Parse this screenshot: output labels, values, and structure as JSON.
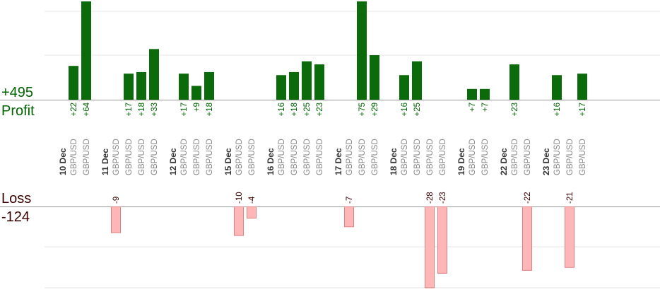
{
  "summary": {
    "profit_total": "+495",
    "profit_label": "Profit",
    "loss_label": "Loss",
    "loss_total": "-124"
  },
  "colors": {
    "profit_bar": "#0b6b0b",
    "profit_text": "#006400",
    "loss_bar": "#ffb6b6",
    "loss_bar_stroke": "#e08080",
    "loss_text": "#3a0000",
    "date_text": "#333333",
    "pair_text": "#888888",
    "grid": "#e6e6e6",
    "axis": "#999999"
  },
  "chart_data": {
    "type": "bar",
    "profit_ylim": [
      0,
      64
    ],
    "loss_ylim": [
      -28,
      0
    ],
    "groups": [
      {
        "date": "10 Dec",
        "trades": [
          {
            "pair": "GBP/USD",
            "value": 22,
            "label": "+22"
          },
          {
            "pair": "GBP/USD",
            "value": 64,
            "label": "+64"
          }
        ]
      },
      {
        "date": "11 Dec",
        "trades": [
          {
            "pair": "GBP/USD",
            "value": -9,
            "label": "-9"
          },
          {
            "pair": "GBP/USD",
            "value": 17,
            "label": "+17"
          },
          {
            "pair": "GBP/USD",
            "value": 18,
            "label": "+18"
          },
          {
            "pair": "GBP/USD",
            "value": 33,
            "label": "+33"
          }
        ]
      },
      {
        "date": "12 Dec",
        "trades": [
          {
            "pair": "GBP/USD",
            "value": 17,
            "label": "+17"
          },
          {
            "pair": "GBP/USD",
            "value": 9,
            "label": "+9"
          },
          {
            "pair": "GBP/USD",
            "value": 18,
            "label": "+18"
          }
        ]
      },
      {
        "date": "15 Dec",
        "trades": [
          {
            "pair": "GBP/USD",
            "value": -10,
            "label": "-10"
          },
          {
            "pair": "GBP/USD",
            "value": -4,
            "label": "-4"
          }
        ]
      },
      {
        "date": "16 Dec",
        "trades": [
          {
            "pair": "GBP/USD",
            "value": 16,
            "label": "+16"
          },
          {
            "pair": "GBP/USD",
            "value": 18,
            "label": "+18"
          },
          {
            "pair": "GBP/USD",
            "value": 25,
            "label": "+25"
          },
          {
            "pair": "GBP/USD",
            "value": 23,
            "label": "+23"
          }
        ]
      },
      {
        "date": "17 Dec",
        "trades": [
          {
            "pair": "GBP/USD",
            "value": -7,
            "label": "-7"
          },
          {
            "pair": "GBP/USD",
            "value": 75,
            "label": "+75"
          },
          {
            "pair": "GBP/USD",
            "value": 29,
            "label": "+29"
          }
        ]
      },
      {
        "date": "18 Dec",
        "trades": [
          {
            "pair": "GBP/USD",
            "value": 16,
            "label": "+16"
          },
          {
            "pair": "GBP/USD",
            "value": 25,
            "label": "+25"
          },
          {
            "pair": "GBP/USD",
            "value": -28,
            "label": "-28"
          },
          {
            "pair": "GBP/USD",
            "value": -23,
            "label": "-23"
          }
        ]
      },
      {
        "date": "19 Dec",
        "trades": [
          {
            "pair": "GBP/USD",
            "value": 7,
            "label": "+7"
          },
          {
            "pair": "GBP/USD",
            "value": 7,
            "label": "+7"
          }
        ]
      },
      {
        "date": "22 Dec",
        "trades": [
          {
            "pair": "GBP/USD",
            "value": 23,
            "label": "+23"
          },
          {
            "pair": "GBP/USD",
            "value": -22,
            "label": "-22"
          }
        ]
      },
      {
        "date": "23 Dec",
        "trades": [
          {
            "pair": "GBP/USD",
            "value": 16,
            "label": "+16"
          },
          {
            "pair": "GBP/USD",
            "value": -21,
            "label": "-21"
          },
          {
            "pair": "GBP/USD",
            "value": 17,
            "label": "+17"
          }
        ]
      }
    ]
  }
}
